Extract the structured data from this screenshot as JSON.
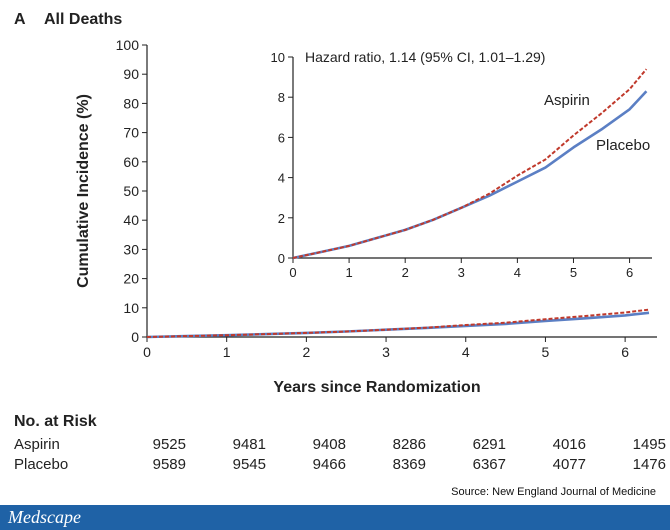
{
  "panel": {
    "letter": "A",
    "title": "All Deaths"
  },
  "chart_data": [
    {
      "type": "line",
      "title": "All Deaths",
      "xlabel": "Years since Randomization",
      "ylabel": "Cumulative Incidence (%)",
      "xlim": [
        0,
        6.4
      ],
      "ylim": [
        0,
        100
      ],
      "xticks": [
        "0",
        "1",
        "2",
        "3",
        "4",
        "5",
        "6"
      ],
      "yticks": [
        "0",
        "10",
        "20",
        "30",
        "40",
        "50",
        "60",
        "70",
        "80",
        "90",
        "100"
      ],
      "series": [
        {
          "name": "Aspirin",
          "color": "#c0392b",
          "style": "dashed",
          "x": [
            0,
            0.5,
            1,
            1.5,
            2,
            2.5,
            3,
            3.5,
            4,
            4.5,
            5,
            5.5,
            6,
            6.3
          ],
          "y": [
            0,
            0.3,
            0.6,
            1.0,
            1.4,
            1.9,
            2.5,
            3.2,
            4.1,
            4.9,
            6.1,
            7.2,
            8.4,
            9.4
          ]
        },
        {
          "name": "Placebo",
          "color": "#5b7fc4",
          "style": "solid",
          "x": [
            0,
            0.5,
            1,
            1.5,
            2,
            2.5,
            3,
            3.5,
            4,
            4.5,
            5,
            5.5,
            6,
            6.3
          ],
          "y": [
            0,
            0.3,
            0.6,
            1.0,
            1.4,
            1.9,
            2.5,
            3.1,
            3.8,
            4.5,
            5.5,
            6.4,
            7.4,
            8.3
          ]
        }
      ]
    },
    {
      "type": "line",
      "annotation": "Hazard ratio, 1.14 (95% CI, 1.01–1.29)",
      "xlim": [
        0,
        6.4
      ],
      "ylim": [
        0,
        10
      ],
      "xticks": [
        "0",
        "1",
        "2",
        "3",
        "4",
        "5",
        "6"
      ],
      "yticks": [
        "0",
        "2",
        "4",
        "6",
        "8",
        "10"
      ],
      "series": [
        {
          "name": "Aspirin",
          "color": "#c0392b",
          "style": "dashed",
          "x": [
            0,
            0.5,
            1,
            1.5,
            2,
            2.5,
            3,
            3.5,
            4,
            4.5,
            5,
            5.5,
            6,
            6.3
          ],
          "y": [
            0,
            0.3,
            0.6,
            1.0,
            1.4,
            1.9,
            2.5,
            3.2,
            4.1,
            4.9,
            6.1,
            7.2,
            8.4,
            9.4
          ]
        },
        {
          "name": "Placebo",
          "color": "#5b7fc4",
          "style": "solid",
          "x": [
            0,
            0.5,
            1,
            1.5,
            2,
            2.5,
            3,
            3.5,
            4,
            4.5,
            5,
            5.5,
            6,
            6.3
          ],
          "y": [
            0,
            0.3,
            0.6,
            1.0,
            1.4,
            1.9,
            2.5,
            3.1,
            3.8,
            4.5,
            5.5,
            6.4,
            7.4,
            8.3
          ]
        }
      ]
    }
  ],
  "risk_table": {
    "title": "No. at Risk",
    "rows": [
      {
        "label": "Aspirin",
        "values": [
          "9525",
          "9481",
          "9408",
          "8286",
          "6291",
          "4016",
          "1495"
        ]
      },
      {
        "label": "Placebo",
        "values": [
          "9589",
          "9545",
          "9466",
          "8369",
          "6367",
          "4077",
          "1476"
        ]
      }
    ]
  },
  "source": "Source: New England Journal of Medicine",
  "footer": {
    "brand": "Medscape",
    "bar_color": "#1f62a6"
  }
}
